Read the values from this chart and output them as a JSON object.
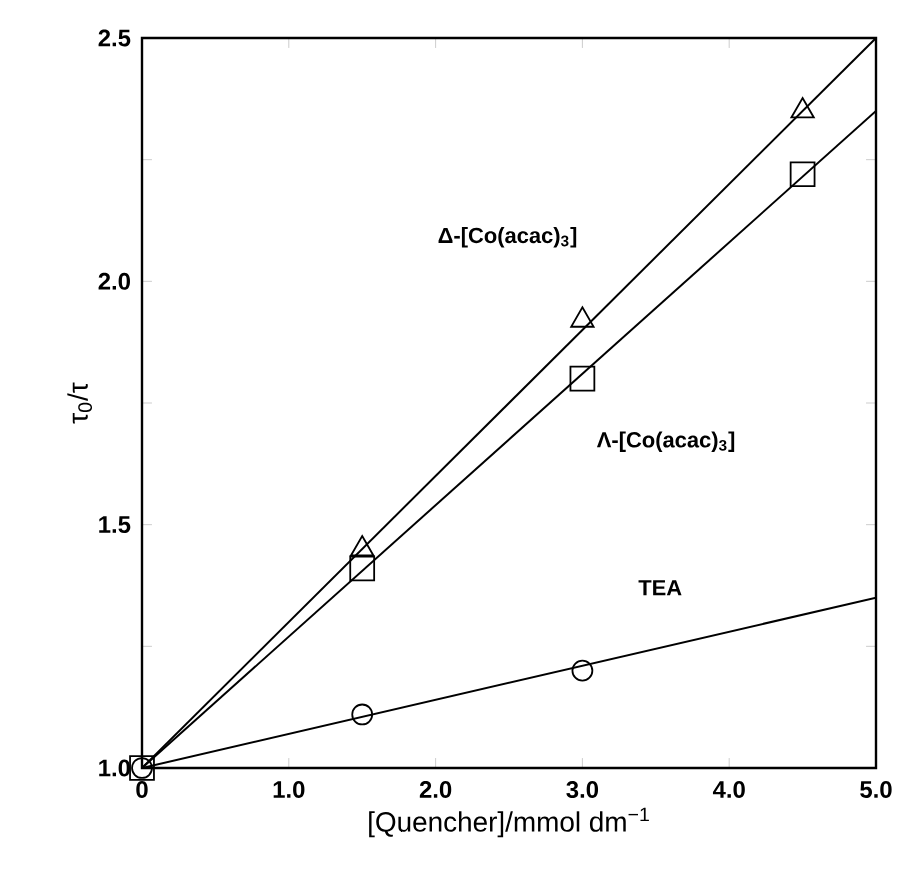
{
  "chart_data": {
    "type": "scatter",
    "xlabel": "[Quencher]/mmol dm$^{−1}$",
    "ylabel": "τ$_{0}$/τ",
    "xlim": [
      0,
      5.0
    ],
    "ylim": [
      1.0,
      2.5
    ],
    "xticks": [
      0,
      {
        "value": 1.0,
        "label": "1.0"
      },
      {
        "value": 2.0,
        "label": "2.0"
      },
      {
        "value": 3.0,
        "label": "3.0"
      },
      {
        "value": 4.0,
        "label": "4.0"
      },
      {
        "value": 5.0,
        "label": "5.0"
      }
    ],
    "yticks": [
      {
        "value": 1.0,
        "label": "1.0"
      },
      {
        "value": 1.25,
        "label": null
      },
      1.5,
      {
        "value": 1.75,
        "label": null
      },
      {
        "value": 2.0,
        "label": "2.0"
      },
      {
        "value": 2.25,
        "label": null
      },
      2.5
    ],
    "series": [
      {
        "type": "line",
        "marker": "none",
        "color": "#000000",
        "x": [
          0,
          5.0
        ],
        "values": [
          1.0,
          2.5
        ]
      },
      {
        "type": "line",
        "marker": "none",
        "color": "#000000",
        "x": [
          0,
          5.0
        ],
        "values": [
          1.0,
          2.35
        ]
      },
      {
        "type": "line",
        "marker": "none",
        "color": "#000000",
        "x": [
          0,
          5.0
        ],
        "values": [
          1.0,
          1.35
        ]
      },
      {
        "type": "scatter",
        "marker": "triangle",
        "color": "#000000",
        "x": [
          1.5,
          3.0,
          4.5
        ],
        "values": [
          1.45,
          1.92,
          2.35
        ]
      },
      {
        "type": "scatter",
        "marker": "square",
        "color": "#000000",
        "x": [
          0,
          1.5,
          3.0,
          4.5
        ],
        "values": [
          1.0,
          1.41,
          1.8,
          2.22
        ]
      },
      {
        "type": "scatter",
        "marker": "circle",
        "color": "#000000",
        "x": [
          0,
          1.5,
          3.0
        ],
        "values": [
          1.0,
          1.11,
          1.2
        ]
      }
    ],
    "annotations": [
      "Δ-[Co(acac)$_{3}$]",
      "Λ-[Co(acac)$_{3}$]",
      "TEA"
    ]
  }
}
